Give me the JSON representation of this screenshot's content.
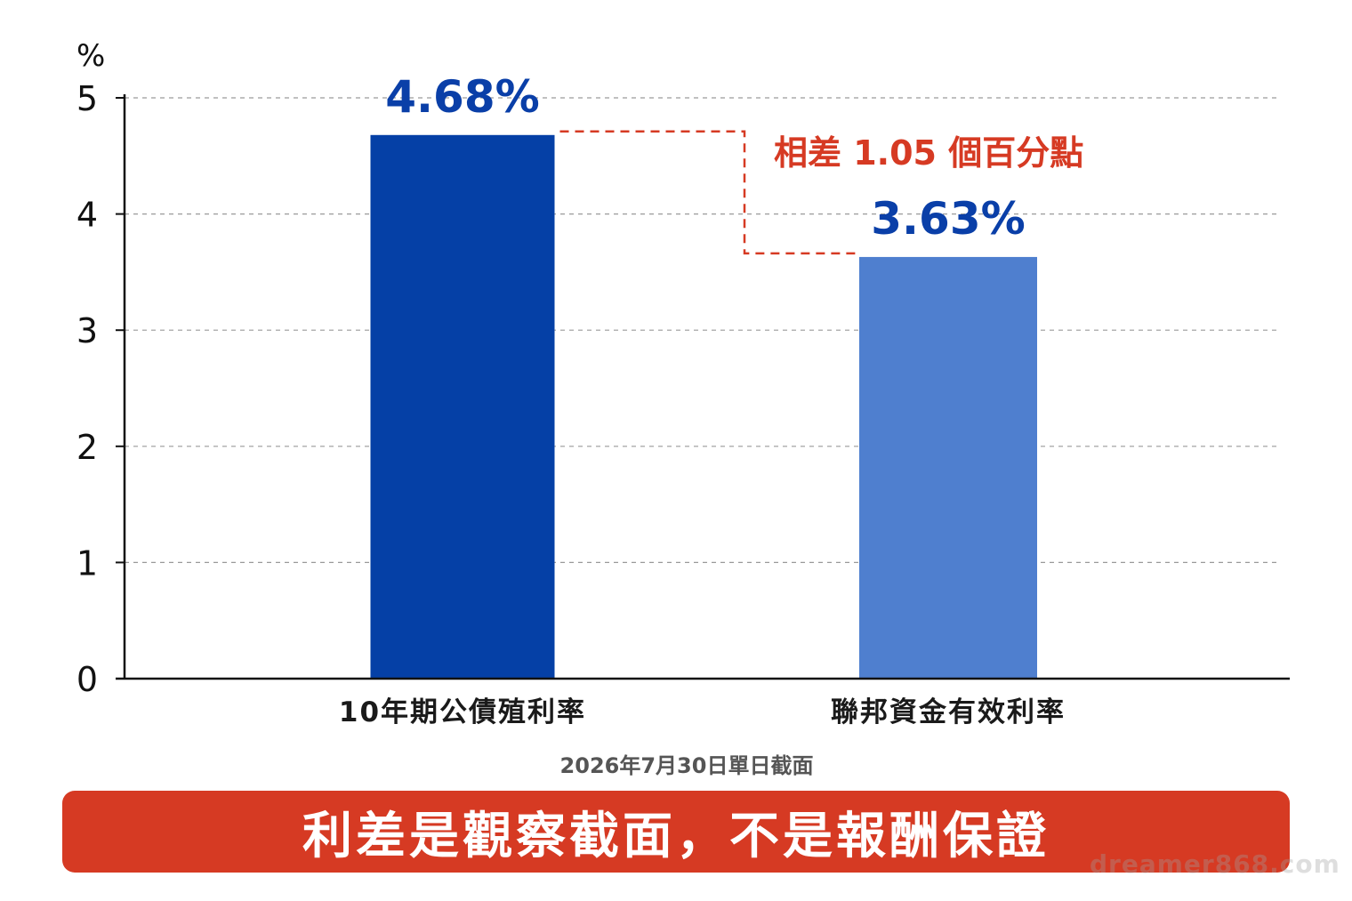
{
  "chart_data": {
    "type": "bar",
    "categories": [
      "10年期公債殖利率",
      "聯邦資金有效利率"
    ],
    "values": [
      4.68,
      3.63
    ],
    "value_labels": [
      "4.68%",
      "3.63%"
    ],
    "ylabel": "%",
    "ylim": [
      0,
      5
    ],
    "yticks": [
      "0",
      "1",
      "2",
      "3",
      "4",
      "5"
    ],
    "grid": true,
    "bar_colors": [
      "#0540A6",
      "#4F7FCF"
    ],
    "value_label_color": "#0A3FA8",
    "annotation": {
      "text": "相差 1.05 個百分點",
      "color": "#D63A23"
    },
    "note": "2026年7月30日單日截面"
  },
  "banner": {
    "text": "利差是觀察截面，不是報酬保證",
    "color": "#D63A23"
  },
  "watermark": "dreamer868.com"
}
